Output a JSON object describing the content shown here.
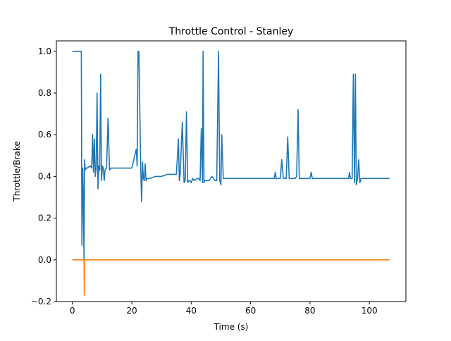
{
  "chart_data": {
    "type": "line",
    "title": "Throttle Control - Stanley",
    "xlabel": "Time (s)",
    "ylabel": "Throttle/Brake",
    "xlim": [
      -5.4,
      112.3
    ],
    "ylim": [
      -0.2,
      1.05
    ],
    "xticks": [
      0,
      20,
      40,
      60,
      80,
      100
    ],
    "yticks": [
      -0.2,
      0.0,
      0.2,
      0.4,
      0.6,
      0.8,
      1.0
    ],
    "xtick_labels": [
      "0",
      "20",
      "40",
      "60",
      "80",
      "100"
    ],
    "ytick_labels": [
      "−0.2",
      "0.0",
      "0.2",
      "0.4",
      "0.6",
      "0.8",
      "1.0"
    ],
    "grid": false,
    "legend": "none",
    "series": [
      {
        "color": "#1f77b4",
        "x": [
          0,
          3.0,
          3.2,
          3.5,
          3.7,
          3.9,
          4.1,
          4.3,
          4.6,
          5.0,
          6.0,
          6.5,
          6.8,
          7.1,
          7.4,
          7.7,
          8.0,
          8.3,
          8.6,
          8.9,
          9.2,
          9.5,
          9.8,
          10.1,
          10.4,
          10.7,
          11.0,
          11.5,
          12.0,
          12.5,
          13.0,
          13.3,
          13.6,
          14.0,
          16.0,
          18.0,
          20.0,
          21.5,
          21.8,
          22.1,
          22.4,
          23.0,
          23.3,
          23.6,
          23.9,
          24.2,
          24.5,
          24.8,
          25.1,
          25.4,
          26.0,
          28.0,
          30.0,
          32.0,
          34.0,
          35.0,
          35.7,
          36.0,
          36.3,
          37.0,
          37.6,
          38.0,
          38.4,
          38.8,
          39.2,
          39.6,
          40.0,
          40.5,
          41.0,
          42.0,
          42.5,
          43.0,
          43.4,
          43.8,
          44.0,
          44.3,
          44.6,
          45.0,
          46.0,
          47.0,
          48.0,
          48.6,
          49.2,
          49.6,
          50.0,
          50.3,
          50.8,
          51.3,
          51.8,
          52.3,
          53.0,
          60.0,
          66.0,
          68.0,
          68.3,
          68.6,
          70.0,
          70.5,
          71.0,
          72.0,
          72.5,
          73.0,
          74.0,
          75.0,
          75.5,
          76.0,
          76.4,
          76.8,
          77.2,
          78.0,
          80.0,
          80.4,
          80.8,
          82.0,
          90.0,
          93.0,
          93.3,
          93.6,
          94.2,
          94.6,
          95.0,
          95.3,
          95.6,
          96.0,
          96.4,
          96.8,
          97.2,
          97.6,
          98.0,
          100.0,
          106.8
        ],
        "y": [
          1.0,
          1.0,
          0.07,
          0.44,
          0.3,
          0.0,
          0.48,
          0.43,
          0.44,
          0.44,
          0.45,
          0.44,
          0.6,
          0.42,
          0.58,
          0.4,
          0.44,
          0.8,
          0.34,
          0.45,
          0.43,
          0.89,
          0.38,
          0.45,
          0.44,
          0.38,
          0.43,
          0.44,
          0.68,
          0.43,
          0.44,
          0.44,
          0.44,
          0.44,
          0.44,
          0.44,
          0.44,
          0.53,
          0.45,
          1.0,
          1.0,
          0.44,
          0.28,
          0.47,
          0.39,
          0.38,
          0.46,
          0.38,
          0.39,
          0.39,
          0.39,
          0.4,
          0.4,
          0.41,
          0.41,
          0.41,
          0.58,
          0.38,
          0.41,
          0.66,
          0.37,
          0.38,
          0.71,
          0.37,
          0.38,
          0.38,
          0.37,
          0.39,
          0.38,
          0.39,
          0.39,
          0.38,
          0.63,
          0.37,
          1.0,
          0.37,
          0.38,
          0.38,
          0.38,
          0.4,
          0.38,
          0.38,
          1.0,
          0.38,
          0.36,
          0.6,
          0.39,
          0.39,
          0.39,
          0.39,
          0.39,
          0.39,
          0.39,
          0.39,
          0.42,
          0.39,
          0.39,
          0.48,
          0.39,
          0.39,
          0.59,
          0.39,
          0.39,
          0.39,
          0.4,
          0.72,
          0.39,
          0.39,
          0.39,
          0.39,
          0.39,
          0.42,
          0.39,
          0.39,
          0.39,
          0.39,
          0.42,
          0.39,
          0.39,
          0.89,
          0.37,
          0.89,
          0.36,
          0.39,
          0.48,
          0.37,
          0.39,
          0.39,
          0.39,
          0.39,
          0.39
        ]
      },
      {
        "color": "#ff7f0e",
        "x": [
          0,
          3.9,
          4.0,
          4.1,
          106.8
        ],
        "y": [
          0.0,
          0.0,
          -0.17,
          0.0,
          0.0
        ]
      }
    ]
  }
}
